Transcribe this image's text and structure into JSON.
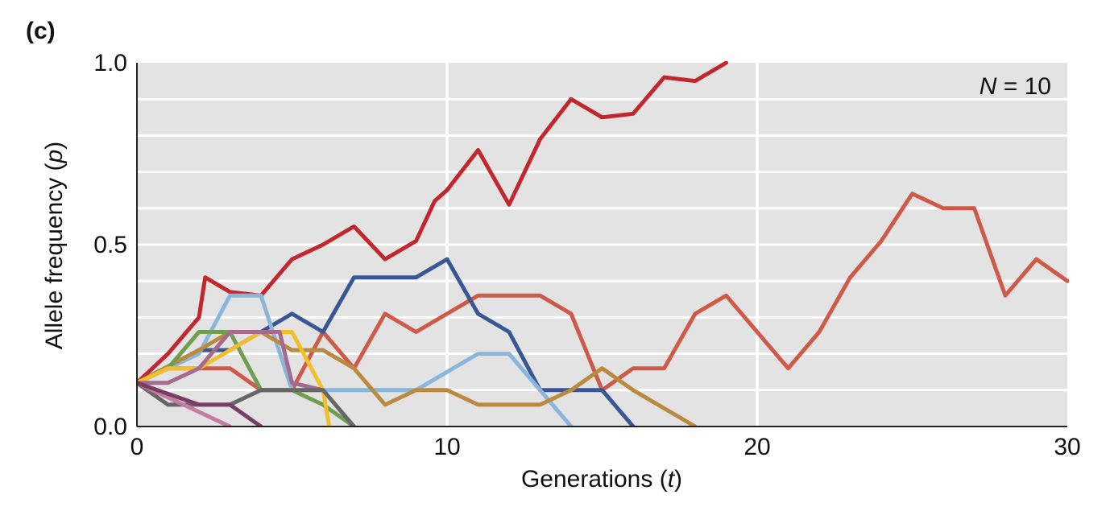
{
  "panel_label": "(c)",
  "chart_data": {
    "type": "line",
    "xlabel_prefix": "Generations (",
    "xlabel_var": "t",
    "xlabel_suffix": ")",
    "ylabel_prefix": "Allele frequency (",
    "ylabel_var": "p",
    "ylabel_suffix": ")",
    "annotation_var": "N",
    "annotation_rest": " = 10",
    "xlim": [
      0,
      30
    ],
    "ylim": [
      0,
      1
    ],
    "x_ticks": [
      0,
      10,
      20,
      30
    ],
    "x_tick_labels": [
      "0",
      "10",
      "20",
      "30"
    ],
    "y_ticks": [
      0,
      0.5,
      1
    ],
    "y_tick_labels": [
      "0.0",
      "0.5",
      "1.0"
    ],
    "grid": true,
    "background": "#e3e3e3",
    "series": [
      {
        "color": "#c1272d",
        "points": [
          [
            0,
            0.12
          ],
          [
            1,
            0.2
          ],
          [
            2,
            0.3
          ],
          [
            2.2,
            0.41
          ],
          [
            3,
            0.37
          ],
          [
            4,
            0.36
          ],
          [
            5,
            0.46
          ],
          [
            6,
            0.5
          ],
          [
            7,
            0.55
          ],
          [
            8,
            0.46
          ],
          [
            9,
            0.51
          ],
          [
            9.6,
            0.62
          ],
          [
            10,
            0.65
          ],
          [
            11,
            0.76
          ],
          [
            12,
            0.61
          ],
          [
            13,
            0.79
          ],
          [
            14,
            0.9
          ],
          [
            15,
            0.85
          ],
          [
            16,
            0.86
          ],
          [
            17,
            0.96
          ],
          [
            18,
            0.95
          ],
          [
            19,
            1.0
          ]
        ]
      },
      {
        "color": "#cf5a48",
        "points": [
          [
            0,
            0.12
          ],
          [
            1,
            0.16
          ],
          [
            2,
            0.16
          ],
          [
            3,
            0.16
          ],
          [
            4,
            0.1
          ],
          [
            5,
            0.1
          ],
          [
            6,
            0.26
          ],
          [
            7,
            0.16
          ],
          [
            8,
            0.31
          ],
          [
            9,
            0.26
          ],
          [
            10,
            0.31
          ],
          [
            11,
            0.36
          ],
          [
            12,
            0.36
          ],
          [
            13,
            0.36
          ],
          [
            14,
            0.31
          ],
          [
            15,
            0.1
          ],
          [
            16,
            0.16
          ],
          [
            17,
            0.16
          ],
          [
            18,
            0.31
          ],
          [
            19,
            0.36
          ],
          [
            20,
            0.26
          ],
          [
            21,
            0.16
          ],
          [
            22,
            0.26
          ],
          [
            23,
            0.41
          ],
          [
            24,
            0.51
          ],
          [
            25,
            0.64
          ],
          [
            26,
            0.6
          ],
          [
            27,
            0.6
          ],
          [
            28,
            0.36
          ],
          [
            29,
            0.46
          ],
          [
            30,
            0.4
          ]
        ]
      },
      {
        "color": "#3a5795",
        "points": [
          [
            0,
            0.12
          ],
          [
            2,
            0.21
          ],
          [
            3,
            0.21
          ],
          [
            4,
            0.26
          ],
          [
            5,
            0.31
          ],
          [
            6,
            0.26
          ],
          [
            7,
            0.41
          ],
          [
            9,
            0.41
          ],
          [
            10,
            0.46
          ],
          [
            11,
            0.31
          ],
          [
            12,
            0.26
          ],
          [
            13,
            0.1
          ],
          [
            15,
            0.1
          ],
          [
            16,
            0.0
          ]
        ]
      },
      {
        "color": "#8ab6dc",
        "points": [
          [
            0,
            0.12
          ],
          [
            1,
            0.16
          ],
          [
            2,
            0.2
          ],
          [
            3,
            0.36
          ],
          [
            4,
            0.36
          ],
          [
            5,
            0.1
          ],
          [
            6,
            0.1
          ],
          [
            9,
            0.1
          ],
          [
            10,
            0.15
          ],
          [
            11,
            0.2
          ],
          [
            12,
            0.2
          ],
          [
            13,
            0.1
          ],
          [
            14,
            0.0
          ]
        ]
      },
      {
        "color": "#b98a40",
        "points": [
          [
            0,
            0.12
          ],
          [
            2,
            0.21
          ],
          [
            3,
            0.26
          ],
          [
            4,
            0.26
          ],
          [
            5,
            0.21
          ],
          [
            6,
            0.21
          ],
          [
            7,
            0.16
          ],
          [
            8,
            0.06
          ],
          [
            9,
            0.1
          ],
          [
            10,
            0.1
          ],
          [
            11,
            0.06
          ],
          [
            13,
            0.06
          ],
          [
            14,
            0.1
          ],
          [
            15,
            0.16
          ],
          [
            16,
            0.1
          ],
          [
            18,
            0.0
          ]
        ]
      },
      {
        "color": "#6e9e4e",
        "points": [
          [
            0,
            0.12
          ],
          [
            1,
            0.16
          ],
          [
            2,
            0.26
          ],
          [
            3,
            0.26
          ],
          [
            4,
            0.1
          ],
          [
            5,
            0.1
          ],
          [
            6,
            0.06
          ],
          [
            7,
            0.0
          ]
        ]
      },
      {
        "color": "#f0bf2a",
        "points": [
          [
            0,
            0.12
          ],
          [
            1,
            0.16
          ],
          [
            2,
            0.16
          ],
          [
            3,
            0.21
          ],
          [
            4,
            0.26
          ],
          [
            5,
            0.26
          ],
          [
            6,
            0.1
          ],
          [
            6.2,
            0.0
          ]
        ]
      },
      {
        "color": "#a66a8e",
        "points": [
          [
            0,
            0.12
          ],
          [
            1,
            0.12
          ],
          [
            2,
            0.16
          ],
          [
            3,
            0.26
          ],
          [
            4,
            0.26
          ],
          [
            4.6,
            0.26
          ],
          [
            5,
            0.12
          ],
          [
            6,
            0.1
          ]
        ]
      },
      {
        "color": "#666666",
        "points": [
          [
            0,
            0.12
          ],
          [
            1,
            0.06
          ],
          [
            2,
            0.06
          ],
          [
            3,
            0.06
          ],
          [
            4,
            0.1
          ],
          [
            5,
            0.1
          ],
          [
            6,
            0.1
          ],
          [
            7,
            0.0
          ]
        ]
      },
      {
        "color": "#c47ea3",
        "points": [
          [
            0,
            0.12
          ],
          [
            1,
            0.08
          ],
          [
            2,
            0.04
          ],
          [
            3,
            0.0
          ]
        ]
      },
      {
        "color": "#7a3d66",
        "points": [
          [
            0,
            0.12
          ],
          [
            2,
            0.06
          ],
          [
            3,
            0.06
          ],
          [
            4,
            0.0
          ]
        ]
      }
    ]
  }
}
